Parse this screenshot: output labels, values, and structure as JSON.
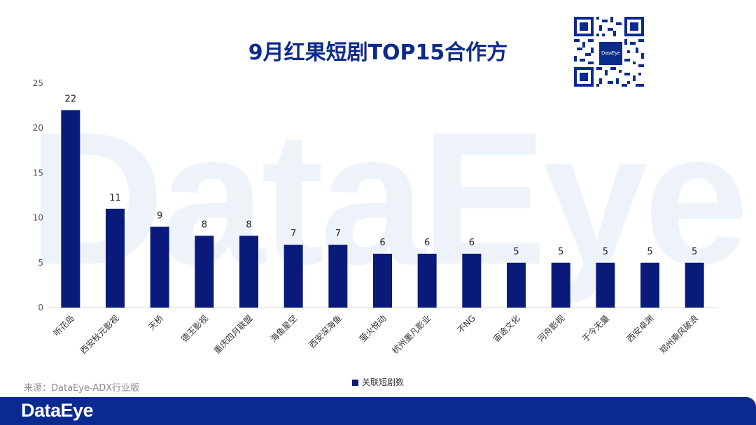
{
  "watermark": "DataEye",
  "title": "9月红果短剧TOP15合作方",
  "qr_logo": "DataEye",
  "source": "来源：DataEye-ADX行业版",
  "footer_logo": "DataEye",
  "colors": {
    "bar": "#0a1a7a",
    "title": "#0d2a8c",
    "footer": "#0b2a8f"
  },
  "chart_data": {
    "type": "bar",
    "title": "9月红果短剧TOP15合作方",
    "categories": [
      "听花岛",
      "西安秋元影视",
      "天桥",
      "德玉影视",
      "重庆四月联盟",
      "海鱼星空",
      "西安深海鱼",
      "萤火悦动",
      "杭州墨凡影业",
      "不NG",
      "宙途文化",
      "河舟影视",
      "于今无量",
      "西安卓渊",
      "郑州乘风破浪"
    ],
    "series": [
      {
        "name": "关联短剧数",
        "values": [
          22,
          11,
          9,
          8,
          8,
          7,
          7,
          6,
          6,
          6,
          5,
          5,
          5,
          5,
          5
        ]
      }
    ],
    "ylim": [
      0,
      25
    ],
    "yticks": [
      0,
      5,
      10,
      15,
      20,
      25
    ],
    "grid": false,
    "legend": "bottom-center",
    "data_labels": true
  }
}
